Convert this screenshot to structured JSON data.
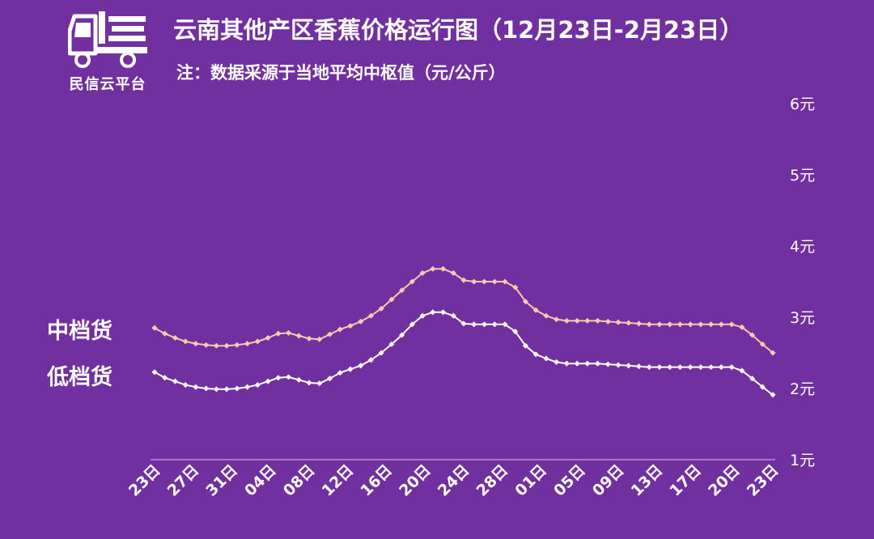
{
  "logo": {
    "name": "民信云平台",
    "icon": "truck-logo-icon"
  },
  "header": {
    "title": "云南其他产区香蕉价格运行图（12月23日-2月23日）",
    "subtitle": "注：数据采源于当地平均中枢值（元/公斤）"
  },
  "colors": {
    "background": "#7030A0",
    "mid_series": "#F8CBAD",
    "low_series": "#FFFFFF",
    "axis": "#D9C8E8"
  },
  "chart_data": {
    "type": "line",
    "y_axis_position": "right",
    "ylim": [
      1,
      6
    ],
    "ytick_labels": [
      "1元",
      "2元",
      "3元",
      "4元",
      "5元",
      "6元"
    ],
    "x_tick_labels": [
      "23日",
      "27日",
      "31日",
      "04日",
      "08日",
      "12日",
      "16日",
      "20日",
      "24日",
      "28日",
      "01日",
      "05日",
      "09日",
      "13日",
      "17日",
      "20日",
      "23日"
    ],
    "series": [
      {
        "name": "中档货",
        "color": "#F8CBAD",
        "values": [
          2.85,
          2.77,
          2.71,
          2.66,
          2.63,
          2.61,
          2.6,
          2.6,
          2.61,
          2.63,
          2.66,
          2.71,
          2.77,
          2.78,
          2.74,
          2.7,
          2.69,
          2.76,
          2.83,
          2.88,
          2.94,
          3.02,
          3.12,
          3.25,
          3.38,
          3.5,
          3.62,
          3.68,
          3.68,
          3.62,
          3.52,
          3.5,
          3.5,
          3.5,
          3.5,
          3.42,
          3.22,
          3.1,
          3.02,
          2.97,
          2.95,
          2.95,
          2.95,
          2.95,
          2.94,
          2.93,
          2.92,
          2.91,
          2.9,
          2.9,
          2.9,
          2.9,
          2.9,
          2.9,
          2.9,
          2.9,
          2.9,
          2.86,
          2.75,
          2.62,
          2.5
        ]
      },
      {
        "name": "低档货",
        "color": "#FFFFFF",
        "values": [
          2.23,
          2.15,
          2.1,
          2.05,
          2.02,
          2.0,
          1.99,
          1.99,
          2.0,
          2.02,
          2.05,
          2.1,
          2.15,
          2.16,
          2.12,
          2.08,
          2.07,
          2.14,
          2.22,
          2.27,
          2.32,
          2.4,
          2.5,
          2.62,
          2.75,
          2.9,
          3.02,
          3.07,
          3.07,
          3.02,
          2.91,
          2.9,
          2.9,
          2.9,
          2.9,
          2.8,
          2.6,
          2.48,
          2.42,
          2.37,
          2.35,
          2.35,
          2.35,
          2.35,
          2.34,
          2.33,
          2.32,
          2.31,
          2.3,
          2.3,
          2.3,
          2.3,
          2.3,
          2.3,
          2.3,
          2.3,
          2.3,
          2.25,
          2.14,
          2.02,
          1.91
        ]
      }
    ]
  }
}
